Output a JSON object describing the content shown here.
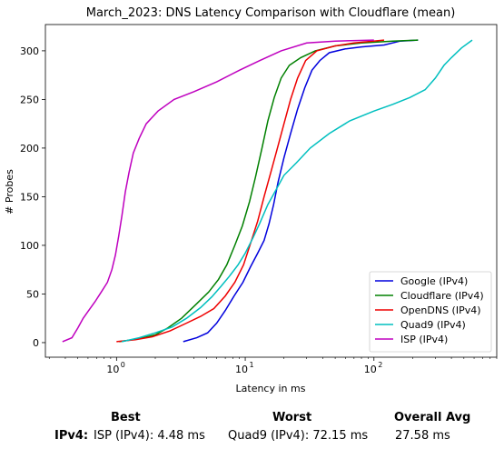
{
  "chart_data": {
    "type": "line",
    "title": "March_2023: DNS Latency Comparison with Cloudflare (mean)",
    "xlabel": "Latency in ms",
    "ylabel": "# Probes",
    "xscale": "log",
    "xlim": [
      0.28,
      900
    ],
    "ylim": [
      -15,
      327
    ],
    "xticks": [
      {
        "value": 1,
        "base": "10",
        "exp": "0"
      },
      {
        "value": 10,
        "base": "10",
        "exp": "1"
      },
      {
        "value": 100,
        "base": "10",
        "exp": "2"
      }
    ],
    "yticks": [
      0,
      50,
      100,
      150,
      200,
      250,
      300
    ],
    "legend_position": "lower-right",
    "grid": false,
    "series": [
      {
        "name": "Google (IPv4)",
        "color": "#0000dd",
        "points": [
          [
            3.3,
            1
          ],
          [
            4.2,
            5
          ],
          [
            5.1,
            10
          ],
          [
            6,
            20
          ],
          [
            7,
            33
          ],
          [
            8.2,
            48
          ],
          [
            9.6,
            62
          ],
          [
            11,
            78
          ],
          [
            12.5,
            92
          ],
          [
            14,
            105
          ],
          [
            15.3,
            122
          ],
          [
            16.6,
            142
          ],
          [
            18,
            165
          ],
          [
            20,
            190
          ],
          [
            22.5,
            215
          ],
          [
            25.5,
            240
          ],
          [
            29,
            262
          ],
          [
            33,
            280
          ],
          [
            38,
            290
          ],
          [
            45,
            298
          ],
          [
            60,
            302
          ],
          [
            80,
            304
          ],
          [
            120,
            306
          ],
          [
            160,
            310
          ],
          [
            220,
            311
          ]
        ]
      },
      {
        "name": "Cloudflare (IPv4)",
        "color": "#008000",
        "points": [
          [
            1.05,
            1
          ],
          [
            1.5,
            4
          ],
          [
            2,
            8
          ],
          [
            2.5,
            15
          ],
          [
            3.2,
            25
          ],
          [
            4.2,
            40
          ],
          [
            5.2,
            52
          ],
          [
            6.2,
            65
          ],
          [
            7.2,
            80
          ],
          [
            8.3,
            100
          ],
          [
            9.5,
            120
          ],
          [
            10.8,
            145
          ],
          [
            12,
            170
          ],
          [
            13.5,
            200
          ],
          [
            15,
            228
          ],
          [
            16.8,
            252
          ],
          [
            19,
            272
          ],
          [
            22,
            285
          ],
          [
            27,
            293
          ],
          [
            35,
            300
          ],
          [
            50,
            305
          ],
          [
            80,
            308
          ],
          [
            140,
            310
          ],
          [
            220,
            311
          ]
        ]
      },
      {
        "name": "OpenDNS (IPv4)",
        "color": "#ee0000",
        "points": [
          [
            1.0,
            1
          ],
          [
            1.4,
            3
          ],
          [
            1.9,
            6
          ],
          [
            2.6,
            12
          ],
          [
            3.5,
            20
          ],
          [
            4.5,
            27
          ],
          [
            5.7,
            35
          ],
          [
            7,
            48
          ],
          [
            8.3,
            62
          ],
          [
            9.7,
            80
          ],
          [
            11,
            102
          ],
          [
            12.5,
            125
          ],
          [
            14,
            150
          ],
          [
            15.8,
            175
          ],
          [
            17.8,
            200
          ],
          [
            20,
            225
          ],
          [
            22.5,
            250
          ],
          [
            25.5,
            272
          ],
          [
            29.5,
            290
          ],
          [
            36,
            300
          ],
          [
            50,
            305
          ],
          [
            70,
            308
          ],
          [
            120,
            311
          ]
        ]
      },
      {
        "name": "Quad9 (IPv4)",
        "color": "#00bfbf",
        "points": [
          [
            1.1,
            1
          ],
          [
            1.5,
            5
          ],
          [
            2,
            10
          ],
          [
            2.7,
            16
          ],
          [
            3.5,
            25
          ],
          [
            4.5,
            36
          ],
          [
            5.5,
            47
          ],
          [
            6.5,
            58
          ],
          [
            7.5,
            68
          ],
          [
            8.8,
            80
          ],
          [
            10,
            92
          ],
          [
            11.5,
            108
          ],
          [
            13,
            123
          ],
          [
            15,
            142
          ],
          [
            17,
            155
          ],
          [
            20,
            172
          ],
          [
            25,
            185
          ],
          [
            32,
            200
          ],
          [
            45,
            215
          ],
          [
            65,
            228
          ],
          [
            100,
            238
          ],
          [
            140,
            245
          ],
          [
            190,
            252
          ],
          [
            250,
            260
          ],
          [
            300,
            272
          ],
          [
            350,
            285
          ],
          [
            400,
            293
          ],
          [
            480,
            303
          ],
          [
            580,
            311
          ]
        ]
      },
      {
        "name": "ISP (IPv4)",
        "color": "#bf00bf",
        "points": [
          [
            0.38,
            1
          ],
          [
            0.45,
            5
          ],
          [
            0.5,
            15
          ],
          [
            0.55,
            25
          ],
          [
            0.6,
            32
          ],
          [
            0.68,
            42
          ],
          [
            0.76,
            52
          ],
          [
            0.85,
            62
          ],
          [
            0.92,
            75
          ],
          [
            0.98,
            90
          ],
          [
            1.04,
            110
          ],
          [
            1.1,
            130
          ],
          [
            1.17,
            155
          ],
          [
            1.25,
            175
          ],
          [
            1.35,
            195
          ],
          [
            1.5,
            210
          ],
          [
            1.7,
            225
          ],
          [
            2.1,
            238
          ],
          [
            2.8,
            250
          ],
          [
            4,
            258
          ],
          [
            6,
            268
          ],
          [
            9,
            280
          ],
          [
            13,
            290
          ],
          [
            19,
            300
          ],
          [
            30,
            308
          ],
          [
            50,
            310
          ],
          [
            100,
            311
          ]
        ]
      }
    ]
  },
  "summary": {
    "best_header": "Best",
    "worst_header": "Worst",
    "avg_header": "Overall Avg",
    "row_label": "IPv4:",
    "best_value": "ISP (IPv4): 4.48 ms",
    "worst_value": "Quad9 (IPv4): 72.15 ms",
    "avg_value": "27.58 ms"
  }
}
